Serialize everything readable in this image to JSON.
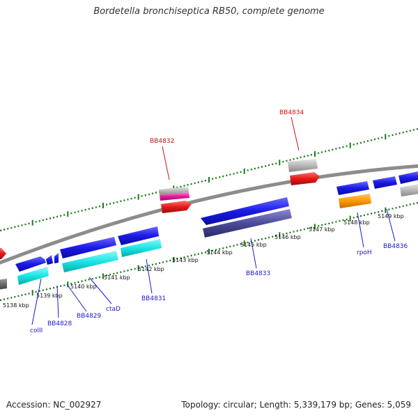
{
  "title": "Bordetella bronchiseptica RB50, complete genome",
  "footer": {
    "accession": "Accession: NC_002927",
    "summary": "Topology: circular; Length: 5,339,179 bp; Genes: 5,059"
  },
  "colors": {
    "backbone": "#8c8c8c",
    "tick_green": "#1a7a1a",
    "label_blue": "#1a1acc",
    "label_red": "#cc1111",
    "gene_blue": "#1a1ae6",
    "gene_cyan": "#19e6e6",
    "gene_red": "#e61a1a",
    "gene_grey": "#b8b8b8",
    "gene_magenta": "#e61a99",
    "gene_navy": "#4b4b99",
    "gene_orange": "#ff9900"
  },
  "scale_labels": [
    "5138 kbp",
    "5139 kbp",
    "5140 kbp",
    "5141 kbp",
    "5142 kbp",
    "5143 kbp",
    "5144 kbp",
    "5145 kbp",
    "5146 kbp",
    "5147 kbp",
    "5148 kbp",
    "5149 kbp"
  ],
  "gene_labels": [
    {
      "text": "colII",
      "color": "blue"
    },
    {
      "text": "BB4828",
      "color": "blue"
    },
    {
      "text": "BB4829",
      "color": "blue"
    },
    {
      "text": "ctaD",
      "color": "blue"
    },
    {
      "text": "BB4831",
      "color": "blue"
    },
    {
      "text": "BB4832",
      "color": "red"
    },
    {
      "text": "BB4833",
      "color": "blue"
    },
    {
      "text": "BB4834",
      "color": "red"
    },
    {
      "text": "rpoH",
      "color": "blue"
    },
    {
      "text": "BB4836",
      "color": "blue"
    }
  ]
}
